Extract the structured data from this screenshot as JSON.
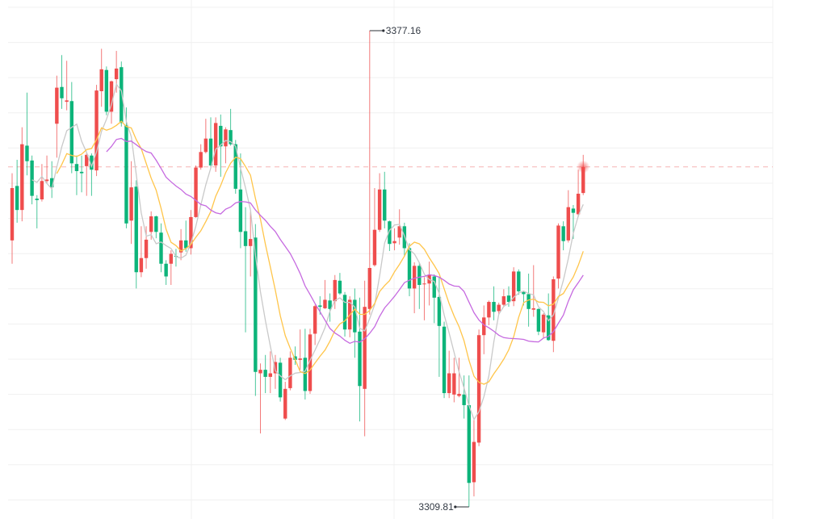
{
  "chart_data": {
    "type": "candlestick",
    "title": "",
    "colors": {
      "up": "#ef4d4d",
      "down": "#0db47a",
      "ma_short": "#c9c9c9",
      "ma_mid": "#ffc54a",
      "ma_long": "#c66ae0",
      "last_price_line": "#f5b3b3",
      "grid": "#f0f0f0"
    },
    "moving_averages": [
      5,
      10,
      20
    ],
    "grid": true,
    "annotations": {
      "high_label": "3377.16",
      "low_label": "3309.81"
    },
    "candles_ohlc": [
      [
        3347.5,
        3357.0,
        3344.2,
        3354.9
      ],
      [
        3355.2,
        3358.9,
        3350.0,
        3351.8
      ],
      [
        3351.8,
        3363.5,
        3350.2,
        3361.1
      ],
      [
        3360.9,
        3368.4,
        3356.7,
        3358.7
      ],
      [
        3358.8,
        3359.5,
        3352.6,
        3353.8
      ],
      [
        3353.4,
        3353.9,
        3349.2,
        3353.2
      ],
      [
        3353.3,
        3358.3,
        3353.0,
        3355.9
      ],
      [
        3355.9,
        3359.5,
        3355.6,
        3356.1
      ],
      [
        3356.3,
        3358.7,
        3353.5,
        3355.0
      ],
      [
        3364.0,
        3370.8,
        3359.2,
        3369.1
      ],
      [
        3369.2,
        3373.7,
        3366.1,
        3367.6
      ],
      [
        3367.1,
        3372.9,
        3365.9,
        3367.3
      ],
      [
        3367.2,
        3369.9,
        3357.0,
        3358.4
      ],
      [
        3358.3,
        3359.5,
        3353.9,
        3357.3
      ],
      [
        3357.2,
        3359.5,
        3354.3,
        3357.0
      ],
      [
        3358.0,
        3359.9,
        3353.8,
        3359.6
      ],
      [
        3359.5,
        3359.8,
        3353.8,
        3357.5
      ],
      [
        3357.4,
        3369.5,
        3356.6,
        3368.7
      ],
      [
        3368.6,
        3374.6,
        3366.4,
        3371.7
      ],
      [
        3371.6,
        3372.1,
        3365.2,
        3365.7
      ],
      [
        3365.7,
        3370.1,
        3364.0,
        3370.0
      ],
      [
        3370.3,
        3374.3,
        3368.4,
        3371.8
      ],
      [
        3372.0,
        3372.8,
        3363.6,
        3364.1
      ],
      [
        3363.8,
        3366.3,
        3349.2,
        3349.9
      ],
      [
        3350.3,
        3358.7,
        3347.0,
        3355.0
      ],
      [
        3355.1,
        3356.0,
        3340.7,
        3343.0
      ],
      [
        3343.0,
        3349.5,
        3342.3,
        3345.0
      ],
      [
        3345.0,
        3349.5,
        3343.5,
        3347.6
      ],
      [
        3348.7,
        3351.6,
        3347.6,
        3350.9
      ],
      [
        3350.9,
        3351.0,
        3347.8,
        3348.7
      ],
      [
        3348.6,
        3349.9,
        3343.0,
        3344.2
      ],
      [
        3344.2,
        3344.7,
        3341.2,
        3342.4
      ],
      [
        3344.2,
        3346.1,
        3341.2,
        3345.6
      ],
      [
        3345.3,
        3346.3,
        3343.8,
        3345.2
      ],
      [
        3345.8,
        3349.1,
        3344.7,
        3347.5
      ],
      [
        3347.5,
        3350.3,
        3345.9,
        3346.4
      ],
      [
        3346.4,
        3351.8,
        3345.5,
        3350.8
      ],
      [
        3350.8,
        3358.1,
        3350.7,
        3357.8
      ],
      [
        3357.8,
        3361.1,
        3357.5,
        3360.0
      ],
      [
        3360.0,
        3364.7,
        3359.8,
        3361.9
      ],
      [
        3361.9,
        3364.9,
        3357.7,
        3358.1
      ],
      [
        3358.1,
        3364.9,
        3357.2,
        3364.1
      ],
      [
        3363.7,
        3365.3,
        3356.5,
        3360.8
      ],
      [
        3360.8,
        3363.5,
        3358.4,
        3363.2
      ],
      [
        3363.1,
        3366.1,
        3360.9,
        3361.1
      ],
      [
        3361.1,
        3361.7,
        3354.1,
        3354.8
      ],
      [
        3354.7,
        3359.8,
        3346.4,
        3348.7
      ],
      [
        3348.8,
        3352.2,
        3334.5,
        3346.7
      ],
      [
        3346.7,
        3351.5,
        3342.4,
        3347.7
      ],
      [
        3347.9,
        3349.8,
        3325.5,
        3328.9
      ],
      [
        3328.7,
        3330.1,
        3320.2,
        3329.2
      ],
      [
        3329.2,
        3331.3,
        3325.9,
        3328.2
      ],
      [
        3328.2,
        3331.8,
        3325.9,
        3328.7
      ],
      [
        3328.7,
        3331.3,
        3326.5,
        3330.3
      ],
      [
        3330.2,
        3330.9,
        3324.7,
        3325.3
      ],
      [
        3322.3,
        3327.5,
        3322.1,
        3326.5
      ],
      [
        3326.6,
        3331.8,
        3326.3,
        3330.9
      ],
      [
        3331.1,
        3332.5,
        3329.9,
        3330.6
      ],
      [
        3330.6,
        3334.9,
        3329.2,
        3330.8
      ],
      [
        3330.9,
        3335.0,
        3325.0,
        3326.2
      ],
      [
        3326.2,
        3335.0,
        3325.8,
        3334.2
      ],
      [
        3334.3,
        3338.4,
        3332.7,
        3338.2
      ],
      [
        3338.3,
        3339.6,
        3337.0,
        3338.1
      ],
      [
        3337.9,
        3341.9,
        3337.8,
        3339.1
      ],
      [
        3339.0,
        3340.0,
        3336.0,
        3337.8
      ],
      [
        3338.9,
        3342.6,
        3337.8,
        3341.9
      ],
      [
        3341.8,
        3342.9,
        3339.8,
        3340.0
      ],
      [
        3339.8,
        3340.2,
        3333.9,
        3334.9
      ],
      [
        3334.9,
        3339.6,
        3333.8,
        3339.1
      ],
      [
        3339.1,
        3340.7,
        3330.9,
        3334.5
      ],
      [
        3334.6,
        3339.4,
        3321.9,
        3326.9
      ],
      [
        3326.5,
        3341.8,
        3319.8,
        3338.1
      ],
      [
        3337.8,
        3377.16,
        3337.0,
        3343.6
      ],
      [
        3344.0,
        3354.9,
        3343.8,
        3349.0
      ],
      [
        3349.0,
        3357.0,
        3348.7,
        3354.7
      ],
      [
        3354.7,
        3357.2,
        3349.2,
        3350.3
      ],
      [
        3350.2,
        3350.3,
        3346.0,
        3347.0
      ],
      [
        3347.1,
        3349.2,
        3346.1,
        3347.4
      ],
      [
        3347.9,
        3351.9,
        3346.9,
        3349.5
      ],
      [
        3349.5,
        3350.0,
        3345.2,
        3346.4
      ],
      [
        3346.4,
        3347.1,
        3339.6,
        3340.7
      ],
      [
        3340.7,
        3344.4,
        3337.2,
        3343.9
      ],
      [
        3343.9,
        3344.4,
        3337.8,
        3341.2
      ],
      [
        3341.3,
        3342.3,
        3336.2,
        3341.4
      ],
      [
        3341.4,
        3344.5,
        3338.3,
        3342.6
      ],
      [
        3342.4,
        3342.7,
        3335.8,
        3339.4
      ],
      [
        3339.5,
        3342.3,
        3328.2,
        3335.4
      ],
      [
        3335.3,
        3336.0,
        3325.2,
        3325.9
      ],
      [
        3325.9,
        3331.9,
        3325.2,
        3328.7
      ],
      [
        3325.7,
        3330.9,
        3324.6,
        3328.7
      ],
      [
        3325.5,
        3330.9,
        3325.3,
        3325.8
      ],
      [
        3325.7,
        3328.4,
        3322.3,
        3324.2
      ],
      [
        3324.2,
        3328.4,
        3309.81,
        3313.2
      ],
      [
        3313.3,
        3322.1,
        3311.3,
        3319.0
      ],
      [
        3318.9,
        3334.9,
        3318.4,
        3334.1
      ],
      [
        3334.1,
        3338.3,
        3331.4,
        3336.6
      ],
      [
        3336.6,
        3339.0,
        3335.5,
        3338.8
      ],
      [
        3338.8,
        3341.0,
        3336.2,
        3337.4
      ],
      [
        3337.5,
        3338.7,
        3337.0,
        3338.4
      ],
      [
        3338.4,
        3340.6,
        3338.1,
        3339.6
      ],
      [
        3339.7,
        3341.0,
        3338.1,
        3338.8
      ],
      [
        3338.9,
        3343.7,
        3338.2,
        3343.1
      ],
      [
        3343.1,
        3343.4,
        3339.8,
        3340.3
      ],
      [
        3340.2,
        3340.4,
        3338.3,
        3339.9
      ],
      [
        3339.9,
        3342.8,
        3335.3,
        3337.8
      ],
      [
        3337.7,
        3344.0,
        3336.7,
        3337.9
      ],
      [
        3337.8,
        3337.9,
        3334.1,
        3334.6
      ],
      [
        3334.5,
        3337.2,
        3333.7,
        3337.0
      ],
      [
        3336.9,
        3340.0,
        3333.3,
        3333.4
      ],
      [
        3333.3,
        3342.4,
        3331.7,
        3342.0
      ],
      [
        3342.1,
        3349.9,
        3340.7,
        3349.6
      ],
      [
        3349.5,
        3350.2,
        3346.1,
        3347.4
      ],
      [
        3347.5,
        3354.6,
        3347.2,
        3352.2
      ],
      [
        3352.0,
        3352.5,
        3347.7,
        3351.4
      ],
      [
        3351.2,
        3357.5,
        3350.8,
        3354.1
      ],
      [
        3354.2,
        3359.6,
        3353.9,
        3357.9
      ]
    ]
  }
}
